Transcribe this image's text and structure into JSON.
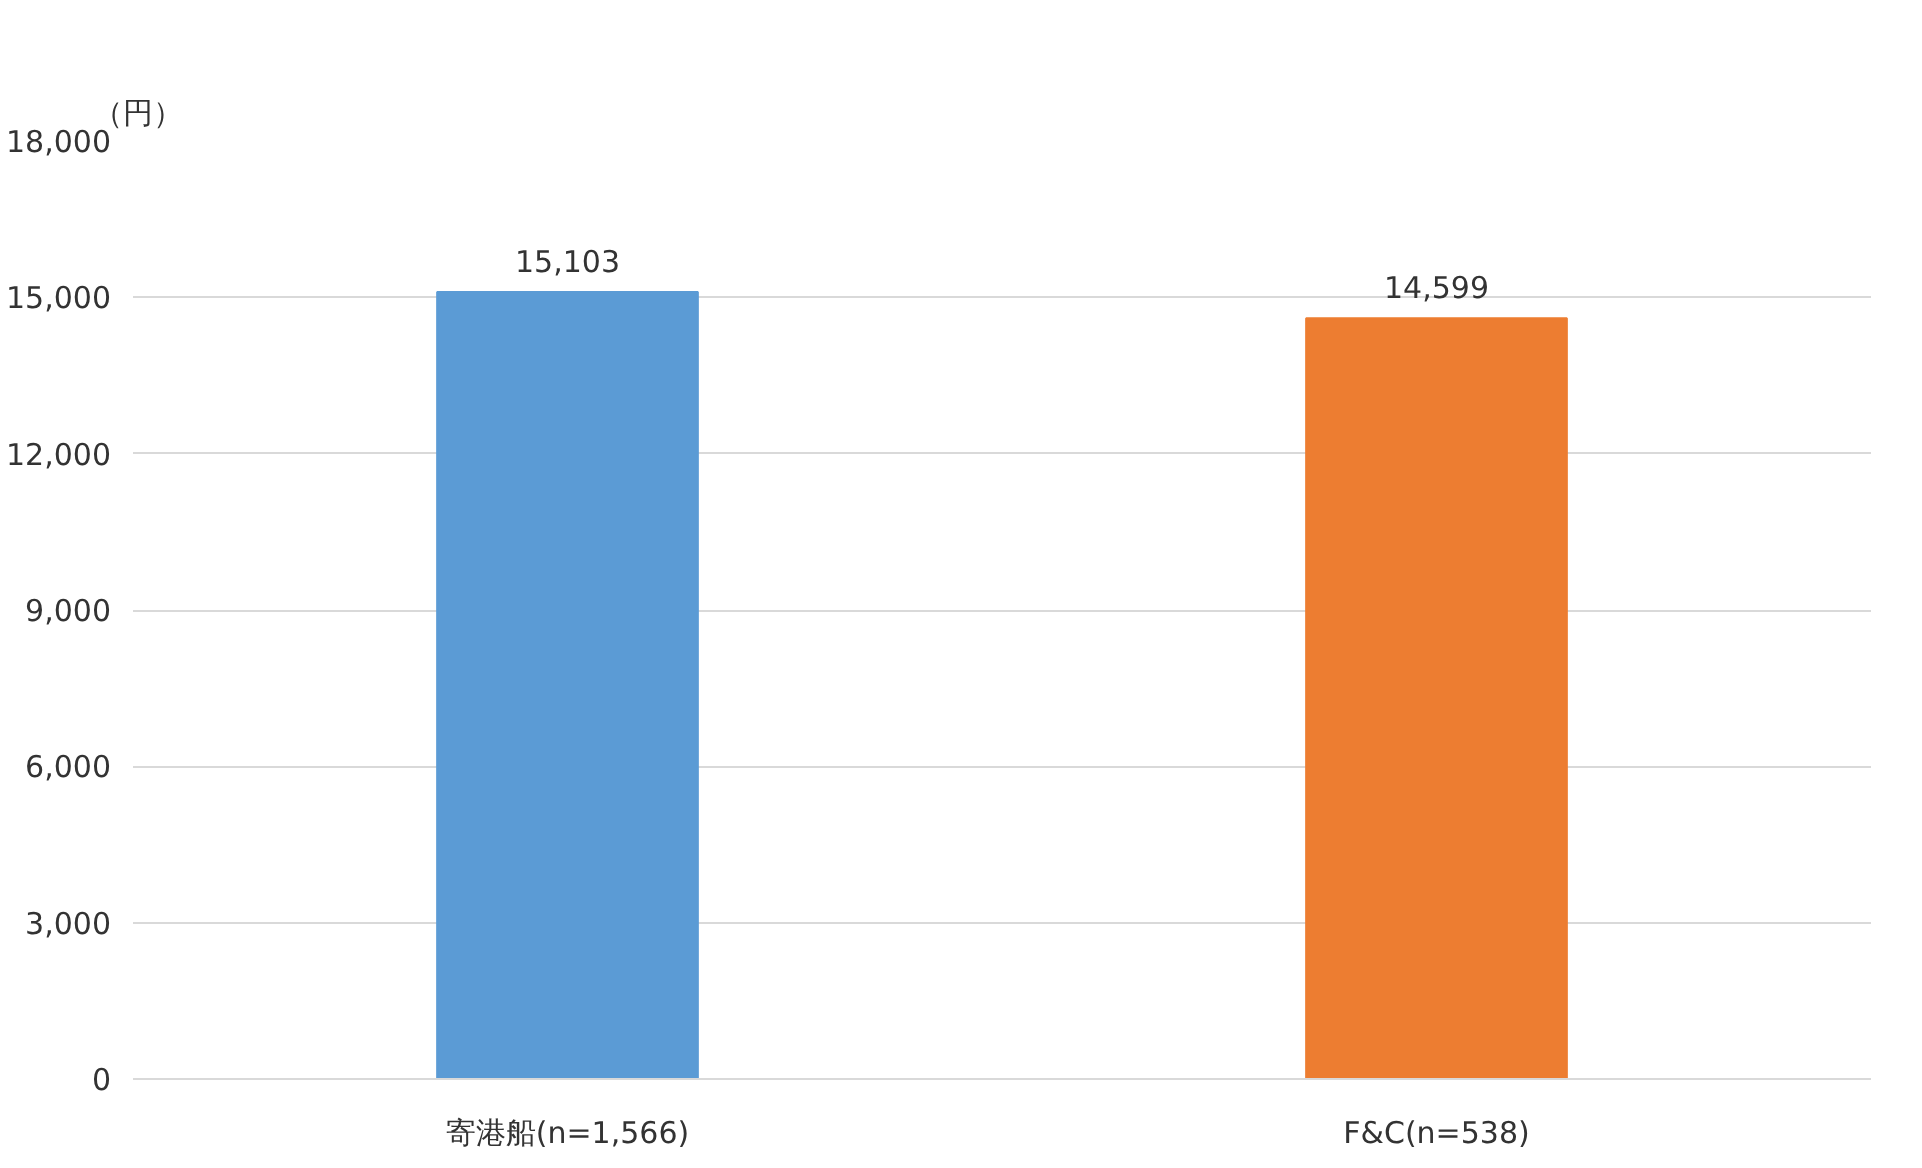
{
  "chart_data": {
    "type": "bar",
    "ylabel": "（円）",
    "categories": [
      "寄港船(n=1,566)",
      "F&C(n=538)"
    ],
    "values": [
      15103,
      14599
    ],
    "value_labels": [
      "15,103",
      "14,599"
    ],
    "colors": [
      "#5b9bd5",
      "#ed7d31"
    ],
    "ylim": [
      0,
      18000
    ],
    "yticks": [
      {
        "value": 0,
        "label": "0"
      },
      {
        "value": 3000,
        "label": "3,000"
      },
      {
        "value": 6000,
        "label": "6,000"
      },
      {
        "value": 9000,
        "label": "9,000"
      },
      {
        "value": 12000,
        "label": "12,000"
      },
      {
        "value": 15000,
        "label": "15,000"
      },
      {
        "value": 18000,
        "label": "18,000"
      }
    ],
    "grid": "y"
  }
}
